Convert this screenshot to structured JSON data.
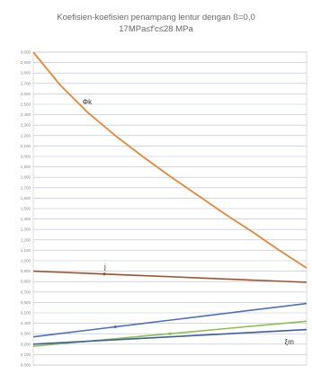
{
  "chart_data": {
    "type": "line",
    "title_line1": "Koefisien-koefisien penampang lentur dengan ß=0,0",
    "title_line2": "17MPa≤f'c≤28 MPa",
    "xlabel": "",
    "ylabel": "",
    "ylim": [
      0,
      3.0
    ],
    "y_ticks": [
      "3,000",
      "2,900",
      "2,800",
      "2,700",
      "2,600",
      "2,500",
      "2,400",
      "2,300",
      "2,200",
      "2,100",
      "2,000",
      "1,900",
      "1,800",
      "1,700",
      "1,600",
      "1,500",
      "1,400",
      "1,300",
      "1,200",
      "1,100",
      "1,000",
      "0,900",
      "0,800",
      "0,700",
      "0,600",
      "0,500",
      "0,400",
      "0,300",
      "0,200",
      "0,100",
      "0,000"
    ],
    "x": [
      0.0,
      0.1,
      0.2,
      0.3,
      0.4,
      0.5,
      0.6,
      0.7,
      0.8,
      0.9,
      1.0
    ],
    "xlim": [
      0,
      1
    ],
    "grid": true,
    "series": [
      {
        "name": "Φ",
        "color": "#e8873a",
        "values": [
          3.0,
          2.68,
          2.42,
          2.2,
          2.0,
          1.81,
          1.63,
          1.45,
          1.28,
          1.1,
          0.93
        ]
      },
      {
        "name": "j",
        "color": "#a0522d",
        "values": [
          0.9,
          0.889,
          0.879,
          0.868,
          0.857,
          0.847,
          0.836,
          0.825,
          0.814,
          0.804,
          0.793
        ]
      },
      {
        "name": "",
        "color": "#4f6fc4",
        "values": [
          0.27,
          0.302,
          0.334,
          0.366,
          0.398,
          0.43,
          0.462,
          0.494,
          0.526,
          0.558,
          0.59
        ]
      },
      {
        "name": "",
        "color": "#8fbf4f",
        "values": [
          0.18,
          0.204,
          0.228,
          0.252,
          0.276,
          0.3,
          0.324,
          0.348,
          0.372,
          0.396,
          0.42
        ]
      },
      {
        "name": "",
        "color": "#3f5f9f",
        "values": [
          0.2,
          0.214,
          0.228,
          0.242,
          0.256,
          0.27,
          0.284,
          0.298,
          0.312,
          0.326,
          0.34
        ]
      }
    ],
    "annotations": [
      {
        "text": "Φk",
        "x": 0.18,
        "y": 2.5
      },
      {
        "text": "j",
        "x": 0.26,
        "y": 0.92
      },
      {
        "text": "",
        "x": 0.3,
        "y": 0.39
      },
      {
        "text": "",
        "x": 0.5,
        "y": 0.28
      },
      {
        "text": "ξm",
        "x": 0.92,
        "y": 0.2
      }
    ]
  }
}
